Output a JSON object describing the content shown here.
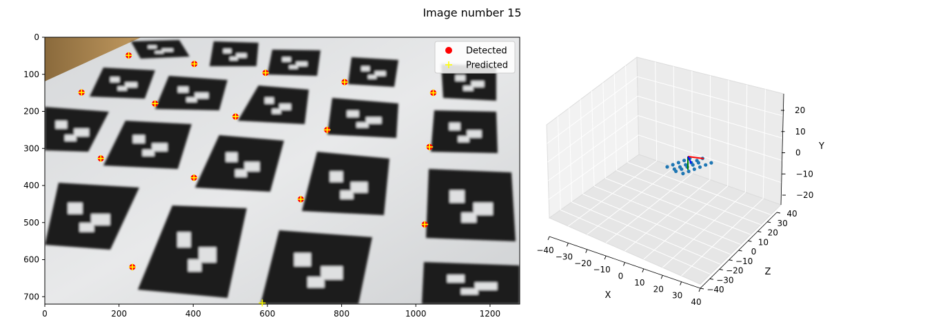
{
  "figure": {
    "title": "Image number 15"
  },
  "chart_data": [
    {
      "type": "scatter",
      "panel": "image-with-detections",
      "xlim": [
        0,
        1280
      ],
      "ylim": [
        720,
        0
      ],
      "xticks": [
        0,
        200,
        400,
        600,
        800,
        1000,
        1200
      ],
      "yticks": [
        0,
        100,
        200,
        300,
        400,
        500,
        600,
        700
      ],
      "grid": false,
      "legend": {
        "placement": "top-right",
        "entries": [
          "Detected",
          "Predicted"
        ]
      },
      "series": [
        {
          "name": "Detected",
          "marker": "circle",
          "color": "#ff0000",
          "points": [
            [
              226,
              49
            ],
            [
              403,
              72
            ],
            [
              595,
              96
            ],
            [
              808,
              121
            ],
            [
              1047,
              150
            ],
            [
              99,
              149
            ],
            [
              297,
              179
            ],
            [
              514,
              214
            ],
            [
              761,
              250
            ],
            [
              1037,
              296
            ],
            [
              151,
              327
            ],
            [
              402,
              379
            ],
            [
              690,
              437
            ],
            [
              1024,
              505
            ],
            [
              236,
              620
            ]
          ]
        },
        {
          "name": "Predicted",
          "marker": "plus",
          "color": "#ffff00",
          "points": [
            [
              226,
              49
            ],
            [
              403,
              72
            ],
            [
              595,
              96
            ],
            [
              808,
              121
            ],
            [
              1047,
              150
            ],
            [
              99,
              149
            ],
            [
              297,
              179
            ],
            [
              514,
              214
            ],
            [
              761,
              250
            ],
            [
              1037,
              296
            ],
            [
              151,
              327
            ],
            [
              402,
              379
            ],
            [
              690,
              437
            ],
            [
              1024,
              505
            ],
            [
              236,
              620
            ],
            [
              586,
              717
            ]
          ]
        }
      ],
      "markers_background": "photo of ArUco marker board (black squares with white patterns on white paper, wooden desk at top-left)"
    },
    {
      "type": "scatter3d",
      "panel": "3d-pose",
      "xlabel": "X",
      "ylabel": "Y",
      "zlabel": "Z",
      "xlim": [
        -40,
        40
      ],
      "ylim": [
        -25,
        25
      ],
      "zlim": [
        -40,
        40
      ],
      "xticks": [
        -40,
        -30,
        -20,
        -10,
        0,
        10,
        20,
        30,
        40
      ],
      "yticks": [
        -20,
        -10,
        0,
        10,
        20
      ],
      "zticks": [
        -40,
        -30,
        -20,
        -10,
        0,
        10,
        20,
        30,
        40
      ],
      "points_color": "#1f77b4",
      "axes_colors": {
        "x": "#ff0000",
        "y": "#008000",
        "z": "#0000ff"
      },
      "grid": true
    }
  ]
}
